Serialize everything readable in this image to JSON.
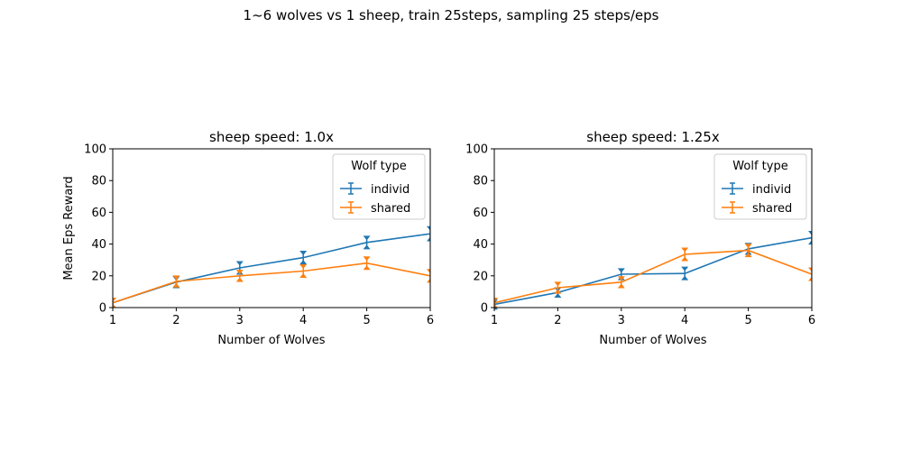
{
  "figure": {
    "suptitle": "1~6 wolves vs 1 sheep, train 25steps, sampling 25 steps/eps"
  },
  "colors": {
    "individ": "#1f77b4",
    "shared": "#ff7f0e"
  },
  "chart_data": [
    {
      "type": "line",
      "title": "sheep speed: 1.0x",
      "xlabel": "Number of Wolves",
      "ylabel": "Mean Eps Reward",
      "xlim": [
        1,
        6
      ],
      "ylim": [
        0,
        100
      ],
      "xticks": [
        "1",
        "2",
        "3",
        "4",
        "5",
        "6"
      ],
      "yticks": [
        "0",
        "20",
        "40",
        "60",
        "80",
        "100"
      ],
      "legend": {
        "title": "Wolf type",
        "placement": "upper-right"
      },
      "x": [
        1,
        2,
        3,
        4,
        5,
        6
      ],
      "series": [
        {
          "name": "individ",
          "values": [
            3,
            16,
            25,
            31.5,
            41,
            46.5
          ],
          "err": [
            1,
            1.5,
            2,
            2,
            2,
            2.5
          ]
        },
        {
          "name": "shared",
          "values": [
            3,
            16.5,
            20,
            23,
            28,
            20
          ],
          "err": [
            1,
            1.5,
            1.5,
            2,
            2,
            2
          ]
        }
      ]
    },
    {
      "type": "line",
      "title": "sheep speed: 1.25x",
      "xlabel": "Number of Wolves",
      "ylabel": "",
      "xlim": [
        1,
        6
      ],
      "ylim": [
        0,
        100
      ],
      "xticks": [
        "1",
        "2",
        "3",
        "4",
        "5",
        "6"
      ],
      "yticks": [
        "0",
        "20",
        "40",
        "60",
        "80",
        "100"
      ],
      "legend": {
        "title": "Wolf type",
        "placement": "upper-right"
      },
      "x": [
        1,
        2,
        3,
        4,
        5,
        6
      ],
      "series": [
        {
          "name": "individ",
          "values": [
            2,
            9.5,
            21,
            21.5,
            37,
            44
          ],
          "err": [
            1,
            1,
            1.5,
            2,
            1.5,
            2
          ]
        },
        {
          "name": "shared",
          "values": [
            3,
            12.5,
            16,
            33.5,
            36,
            21
          ],
          "err": [
            1,
            1.5,
            1.5,
            2,
            2,
            2
          ]
        }
      ]
    }
  ]
}
